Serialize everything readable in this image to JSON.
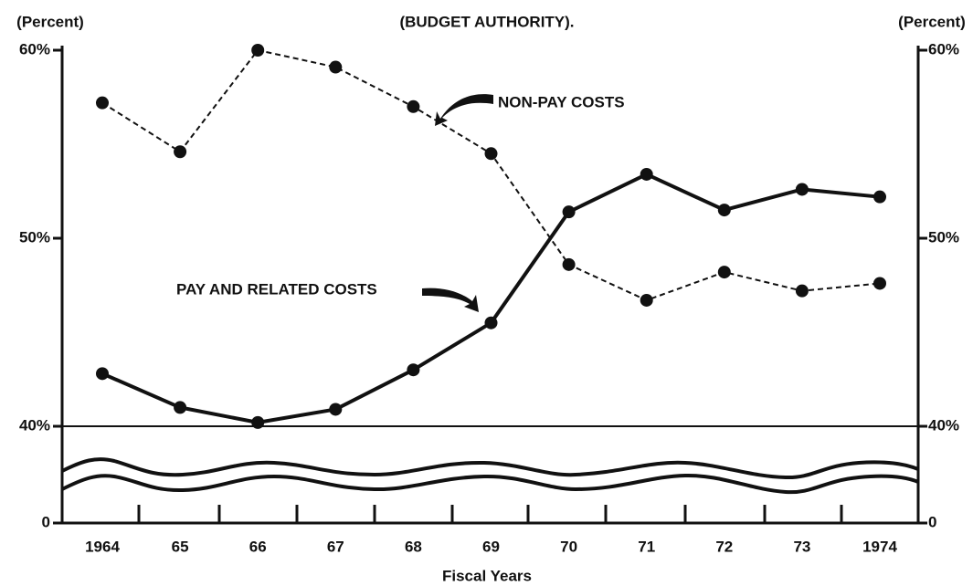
{
  "chart_data": {
    "type": "line",
    "title": "(BUDGET AUTHORITY).",
    "y_label": "(Percent)",
    "y2_label": "(Percent)",
    "x_label": "Fiscal Years",
    "categories": [
      "1964",
      "65",
      "66",
      "67",
      "68",
      "69",
      "70",
      "71",
      "72",
      "73",
      "1974"
    ],
    "series": [
      {
        "name": "NON-PAY COSTS",
        "color": "#111111",
        "dashed": true,
        "values": [
          57.2,
          54.6,
          60.0,
          59.1,
          57.0,
          54.5,
          48.6,
          46.7,
          48.2,
          47.2,
          47.6
        ]
      },
      {
        "name": "PAY AND RELATED COSTS",
        "color": "#111111",
        "dashed": false,
        "values": [
          42.8,
          41.0,
          40.2,
          40.9,
          43.0,
          45.5,
          51.4,
          53.4,
          51.5,
          52.6,
          52.2
        ]
      }
    ],
    "ylim": [
      0,
      60
    ],
    "axis_break": [
      0,
      40
    ],
    "yticks": [
      {
        "value": 0,
        "label": "0"
      },
      {
        "value": 40,
        "label": "40%"
      },
      {
        "value": 50,
        "label": "50%"
      },
      {
        "value": 60,
        "label": "60%"
      }
    ],
    "y2lim": [
      0,
      60
    ],
    "y2ticks": [
      {
        "value": 0,
        "label": "0"
      },
      {
        "value": 40,
        "label": "40%"
      },
      {
        "value": 50,
        "label": "50%"
      },
      {
        "value": 60,
        "label": "60%"
      }
    ],
    "grid": false
  }
}
